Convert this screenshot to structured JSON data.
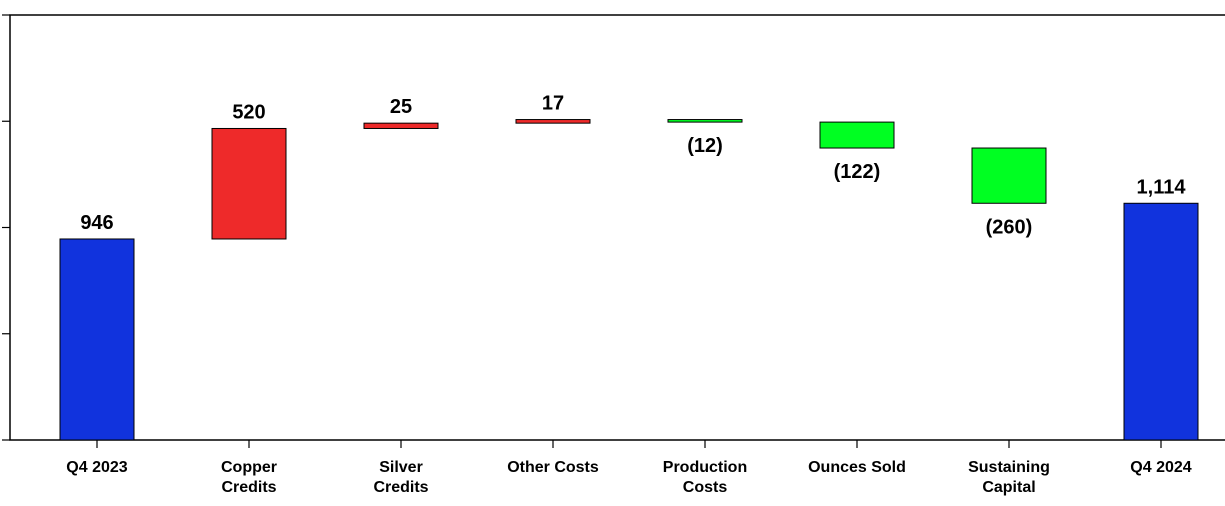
{
  "chart_data": {
    "type": "waterfall",
    "categories": [
      "Q4 2023",
      "Copper\nCredits",
      "Silver\nCredits",
      "Other Costs",
      "Production\nCosts",
      "Ounces Sold",
      "Sustaining\nCapital",
      "Q4 2024"
    ],
    "values": [
      946,
      520,
      25,
      17,
      -12,
      -122,
      -260,
      1114
    ],
    "value_labels": [
      "946",
      "520",
      "25",
      "17",
      "(12)",
      "(122)",
      "(260)",
      "1,114"
    ],
    "is_total": [
      true,
      false,
      false,
      false,
      false,
      false,
      false,
      true
    ],
    "total_color": "#1133dd",
    "increase_color": "#ee2a2a",
    "decrease_color": "#00ff22",
    "ylim": [
      0,
      2000
    ],
    "yticks": [
      0,
      500,
      1000,
      1500,
      2000
    ]
  }
}
